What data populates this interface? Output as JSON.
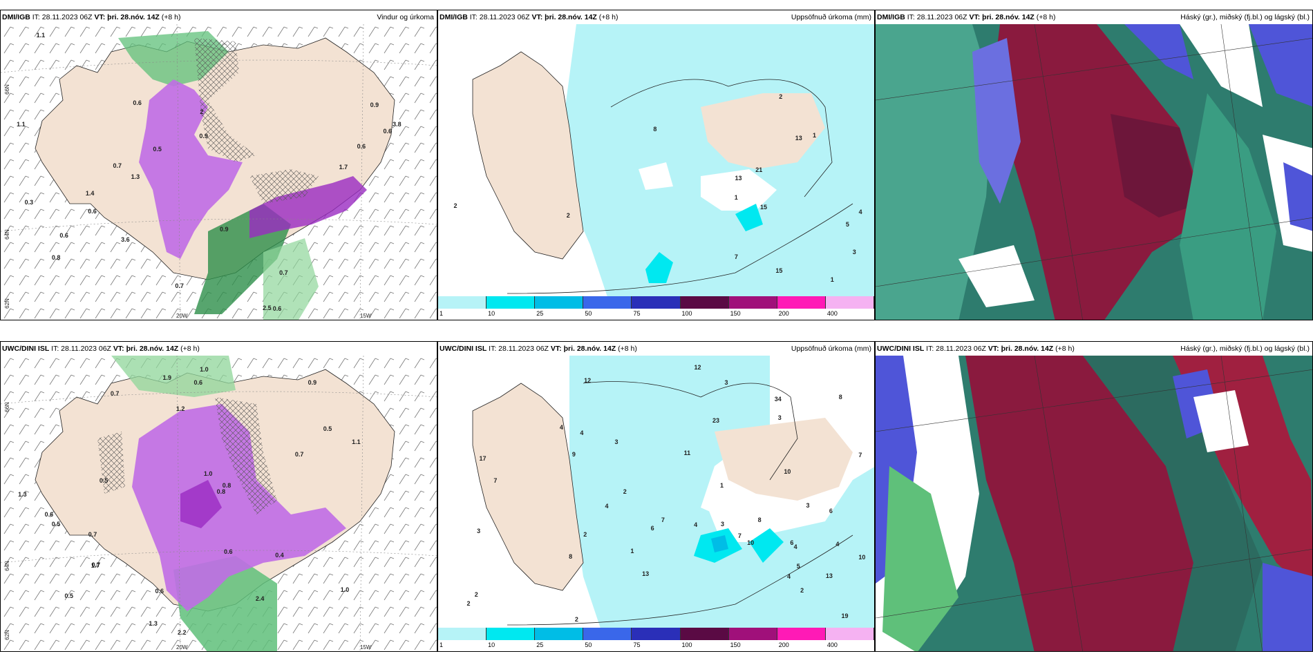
{
  "colors": {
    "land": "#f3e2d3",
    "precip_light": "#b6f3f7",
    "precip_mid": "#00e8f0",
    "purple": "#b15fe0",
    "green": "#5fc07a",
    "maroon": "#8a1a3e",
    "teal": "#2e7c6e",
    "blue": "#4f55d8"
  },
  "colorbar": {
    "colors": [
      "#b6f3f7",
      "#00e8f0",
      "#00bde6",
      "#3a67ea",
      "#2a2fb8",
      "#5a0a44",
      "#a0107a",
      "#ff1ab6",
      "#f5b2f2"
    ],
    "ticks": [
      "1",
      "10",
      "25",
      "50",
      "75",
      "100",
      "150",
      "200",
      "400"
    ]
  },
  "rows": [
    {
      "model": "DMI/IGB",
      "it": "IT: 28.11.2023 06Z",
      "vt_label": "VT:",
      "vt": "þri. 28.nóv. 14Z",
      "lead": "(+8 h)",
      "panels": [
        {
          "title": "Vindur og úrkoma",
          "type": "wind"
        },
        {
          "title": "Uppsöfnuð úrkoma (mm)",
          "type": "accum"
        },
        {
          "title": "Háský (gr.), miðský (fj.bl.) og lágský (bl.)",
          "type": "cloud"
        }
      ],
      "axis": {
        "lat1": "66N",
        "lat2": "64N",
        "lat3": "62N",
        "lon1": "20W",
        "lon2": "15W"
      },
      "wind_labels": [
        "1.1",
        "0.5",
        "0.7",
        "0.6",
        "0.6",
        "0.9",
        "2",
        "0.8",
        "0.9",
        "1.4",
        "2.5",
        "0.9",
        "0.7",
        "0.3",
        "0.6",
        "0.7",
        "0.6",
        "3.8",
        "3.6",
        "1.7",
        "1.3",
        "1.1",
        "0.6",
        "0.6"
      ],
      "accum_labels": [
        "1",
        "4",
        "13",
        "5",
        "7",
        "2",
        "1",
        "8",
        "3",
        "15",
        "21",
        "13",
        "2",
        "15",
        "2",
        "1"
      ]
    },
    {
      "model": "UWC/DINI ISL",
      "it": "IT: 28.11.2023 06Z",
      "vt_label": "VT:",
      "vt": "þri. 28.nóv. 14Z",
      "lead": "(+8 h)",
      "panels": [
        {
          "title": "",
          "type": "wind"
        },
        {
          "title": "Uppsöfnuð úrkoma (mm)",
          "type": "accum"
        },
        {
          "title": "Háský (gr.), miðský (fj.bl.) og lágský (bl.)",
          "type": "cloud"
        }
      ],
      "axis": {
        "lat1": "66N",
        "lat2": "64N",
        "lat3": "62N",
        "lon1": "20W",
        "lon2": "15W"
      },
      "wind_labels": [
        "0.5",
        "0.9",
        "0.7",
        "0.5",
        "0.6",
        "0.5",
        "0.7",
        "0.7",
        "1.1",
        "0.7",
        "0.6",
        "1.0",
        "0.4",
        "0.8",
        "2.2",
        "1.9",
        "1.0",
        "1.3",
        "1.7",
        "1.3",
        "2.4",
        "0.6",
        "1.2",
        "0.8",
        "1.0",
        "0.6",
        "0.5"
      ],
      "accum_labels": [
        "2",
        "2",
        "4",
        "8",
        "7",
        "10",
        "7",
        "3",
        "6",
        "5",
        "4",
        "6",
        "4",
        "4",
        "2",
        "7",
        "4",
        "3",
        "8",
        "6",
        "13",
        "10",
        "7",
        "3",
        "23",
        "34",
        "13",
        "11",
        "17",
        "19",
        "8",
        "4",
        "9",
        "2",
        "1",
        "4",
        "2",
        "12",
        "12",
        "10",
        "3",
        "3",
        "2",
        "1",
        "3"
      ]
    }
  ]
}
